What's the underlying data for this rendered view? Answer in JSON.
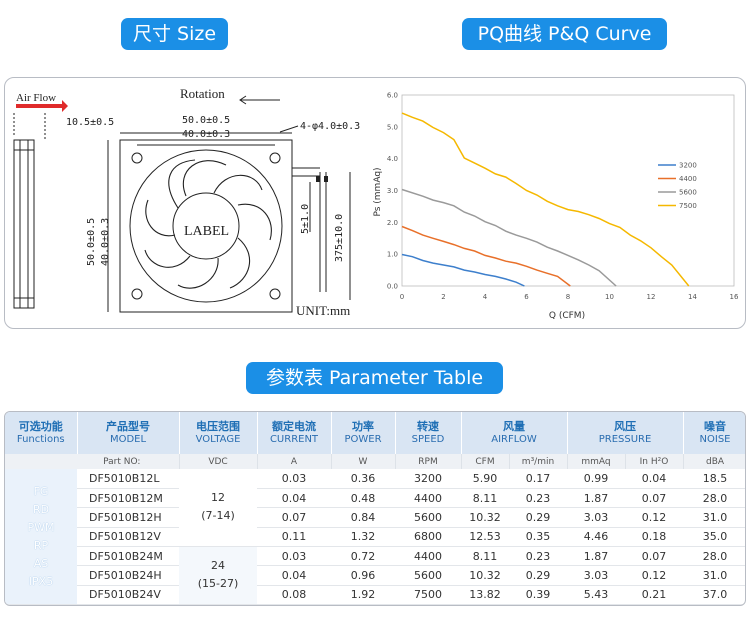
{
  "headings": {
    "size": "尺寸 Size",
    "pq": "PQ曲线  P&Q Curve",
    "params": "参数表  Parameter Table"
  },
  "drawing": {
    "air_flow": "Air Flow",
    "rotation": "Rotation",
    "thickness": "10.5±0.5",
    "outer_w": "50.0±0.5",
    "hole_w": "40.0±0.3",
    "holes": "4-φ4.0±0.3",
    "outer_h": "50.0±0.5",
    "hole_h": "40.0±0.3",
    "label": "LABEL",
    "strip": "5±1.0",
    "lead": "375±10.0",
    "unit": "UNIT:mm"
  },
  "chart_data": {
    "type": "line",
    "xlabel": "Q (CFM)",
    "ylabel": "Ps (mmAq)",
    "xlim": [
      0,
      16
    ],
    "ylim": [
      0,
      6
    ],
    "xticks": [
      "0",
      "2",
      "4",
      "6",
      "8",
      "10",
      "12",
      "14",
      "16"
    ],
    "yticks": [
      "0.0",
      "1.0",
      "2.0",
      "3.0",
      "4.0",
      "5.0",
      "6.0"
    ],
    "legend": "right",
    "grid": false,
    "series": [
      {
        "name": "3200",
        "color": "#3d7fcc",
        "x": [
          0,
          0.5,
          1,
          1.5,
          2,
          2.5,
          3,
          3.5,
          4,
          4.5,
          5,
          5.5,
          5.9
        ],
        "y": [
          0.99,
          0.92,
          0.8,
          0.72,
          0.66,
          0.6,
          0.5,
          0.44,
          0.36,
          0.3,
          0.22,
          0.12,
          0.0
        ]
      },
      {
        "name": "4400",
        "color": "#e8702a",
        "x": [
          0,
          0.5,
          1,
          1.5,
          2,
          2.5,
          3,
          3.5,
          4,
          4.5,
          5,
          5.5,
          6,
          6.5,
          7,
          7.5,
          8.11
        ],
        "y": [
          1.87,
          1.74,
          1.6,
          1.5,
          1.4,
          1.3,
          1.18,
          1.1,
          0.96,
          0.88,
          0.78,
          0.72,
          0.62,
          0.5,
          0.4,
          0.3,
          0.0
        ]
      },
      {
        "name": "5600",
        "color": "#9a9a9a",
        "x": [
          0,
          1,
          1.5,
          2,
          2.5,
          3,
          3.5,
          4,
          4.5,
          5,
          5.5,
          6,
          6.5,
          7,
          7.5,
          8,
          8.5,
          9,
          9.5,
          10.32
        ],
        "y": [
          3.03,
          2.82,
          2.7,
          2.62,
          2.52,
          2.32,
          2.2,
          2.02,
          1.9,
          1.72,
          1.6,
          1.5,
          1.38,
          1.22,
          1.1,
          0.96,
          0.82,
          0.66,
          0.48,
          0.0
        ]
      },
      {
        "name": "7500",
        "color": "#f5b800",
        "x": [
          0,
          0.5,
          1,
          1.5,
          2,
          2.5,
          3,
          3.5,
          4,
          4.5,
          5,
          5.5,
          6,
          6.5,
          7,
          7.5,
          8,
          8.5,
          9,
          9.5,
          10,
          10.5,
          11,
          11.5,
          12,
          12.5,
          13,
          13.82
        ],
        "y": [
          5.43,
          5.3,
          5.18,
          4.98,
          4.82,
          4.6,
          4.02,
          3.86,
          3.7,
          3.52,
          3.42,
          3.22,
          3.0,
          2.86,
          2.66,
          2.52,
          2.4,
          2.34,
          2.24,
          2.12,
          1.96,
          1.84,
          1.6,
          1.42,
          1.2,
          0.92,
          0.66,
          0.0
        ]
      }
    ]
  },
  "table": {
    "headers": [
      {
        "zh": "可选功能",
        "en": "Functions"
      },
      {
        "zh": "产品型号",
        "en": "MODEL"
      },
      {
        "zh": "电压范围",
        "en": "VOLTAGE"
      },
      {
        "zh": "额定电流",
        "en": "CURRENT"
      },
      {
        "zh": "功率",
        "en": "POWER"
      },
      {
        "zh": "转速",
        "en": "SPEED"
      },
      {
        "zh": "风量",
        "en": "AIRFLOW"
      },
      {
        "zh": "风压",
        "en": "PRESSURE"
      },
      {
        "zh": "噪音",
        "en": "NOISE"
      }
    ],
    "units": [
      "Part NO:",
      "VDC",
      "A",
      "W",
      "RPM",
      "CFM",
      "m³/min",
      "mmAq",
      "In H²O",
      "dBA"
    ],
    "functions": [
      "FG",
      "RD",
      "PWM",
      "RP",
      "AS",
      "IPX5"
    ],
    "voltage_groups": [
      {
        "nominal": "12",
        "range": "(7-14)"
      },
      {
        "nominal": "24",
        "range": "(15-27)"
      }
    ],
    "rows": [
      {
        "model": "DF5010B12L",
        "current": "0.03",
        "power": "0.36",
        "speed": "3200",
        "cfm": "5.90",
        "m3": "0.17",
        "mmaq": "0.99",
        "inh2o": "0.04",
        "noise": "18.5"
      },
      {
        "model": "DF5010B12M",
        "current": "0.04",
        "power": "0.48",
        "speed": "4400",
        "cfm": "8.11",
        "m3": "0.23",
        "mmaq": "1.87",
        "inh2o": "0.07",
        "noise": "28.0"
      },
      {
        "model": "DF5010B12H",
        "current": "0.07",
        "power": "0.84",
        "speed": "5600",
        "cfm": "10.32",
        "m3": "0.29",
        "mmaq": "3.03",
        "inh2o": "0.12",
        "noise": "31.0"
      },
      {
        "model": "DF5010B12V",
        "current": "0.11",
        "power": "1.32",
        "speed": "6800",
        "cfm": "12.53",
        "m3": "0.35",
        "mmaq": "4.46",
        "inh2o": "0.18",
        "noise": "35.0"
      },
      {
        "model": "DF5010B24M",
        "current": "0.03",
        "power": "0.72",
        "speed": "4400",
        "cfm": "8.11",
        "m3": "0.23",
        "mmaq": "1.87",
        "inh2o": "0.07",
        "noise": "28.0"
      },
      {
        "model": "DF5010B24H",
        "current": "0.04",
        "power": "0.96",
        "speed": "5600",
        "cfm": "10.32",
        "m3": "0.29",
        "mmaq": "3.03",
        "inh2o": "0.12",
        "noise": "31.0"
      },
      {
        "model": "DF5010B24V",
        "current": "0.08",
        "power": "1.92",
        "speed": "7500",
        "cfm": "13.82",
        "m3": "0.39",
        "mmaq": "5.43",
        "inh2o": "0.21",
        "noise": "37.0"
      }
    ]
  }
}
